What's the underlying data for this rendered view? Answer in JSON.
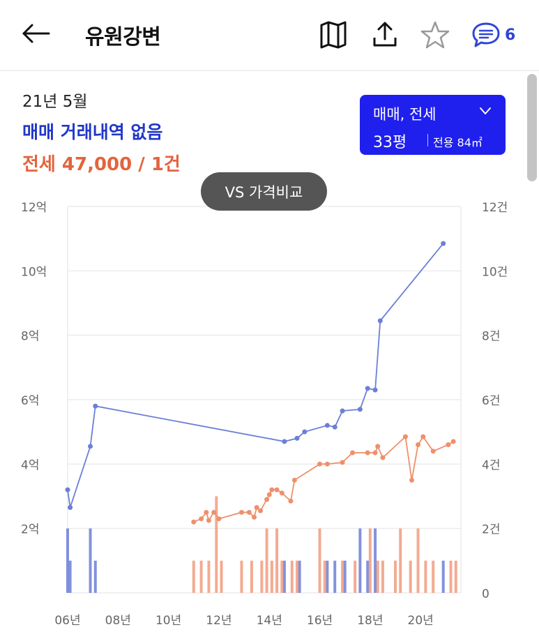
{
  "header": {
    "title": "유원강변",
    "chat_count": "6",
    "icons": [
      "back-arrow-icon",
      "map-icon",
      "share-icon",
      "star-icon",
      "chat-icon"
    ]
  },
  "summary": {
    "date": "21년 5월",
    "sale_text": "매매 거래내역 없음",
    "jeonse_text": "전세 47,000 / 1건"
  },
  "selector": {
    "type": "매매, 전세",
    "size": "33평",
    "area": "전용 84㎡"
  },
  "compare_button": "VS 가격비교",
  "colors": {
    "sale": "#6b7fd7",
    "jeonse": "#ef8f6c",
    "accent": "#1f1fee"
  },
  "chart_data": {
    "type": "line",
    "title": "",
    "x_ticks": [
      "06년",
      "08년",
      "10년",
      "12년",
      "14년",
      "16년",
      "18년",
      "20년"
    ],
    "xlim": [
      2006,
      2021.6
    ],
    "y_left": {
      "ticks": [
        "12억",
        "10억",
        "8억",
        "6억",
        "4억",
        "2억"
      ],
      "ylim": [
        0,
        12
      ]
    },
    "y_right": {
      "ticks": [
        "12건",
        "10건",
        "8건",
        "6건",
        "4건",
        "2건",
        "0"
      ],
      "ylim": [
        0,
        12
      ]
    },
    "grid": true,
    "series": [
      {
        "color": "#6b7fd7",
        "x": [
          2006.0,
          2006.1,
          2006.9,
          2007.1,
          2014.6,
          2015.1,
          2015.4,
          2016.3,
          2016.6,
          2016.9,
          2017.6,
          2017.9,
          2018.2,
          2018.4,
          2020.9
        ],
        "y": [
          3.2,
          2.65,
          4.55,
          5.8,
          4.7,
          4.8,
          5.0,
          5.2,
          5.15,
          5.65,
          5.7,
          6.35,
          6.3,
          8.45,
          10.85
        ]
      },
      {
        "color": "#ef8f6c",
        "x": [
          2011.0,
          2011.3,
          2011.5,
          2011.6,
          2011.8,
          2012.0,
          2012.9,
          2013.2,
          2013.4,
          2013.5,
          2013.65,
          2013.9,
          2014.0,
          2014.1,
          2014.3,
          2014.5,
          2014.85,
          2015.0,
          2016.0,
          2016.3,
          2016.9,
          2017.3,
          2017.9,
          2018.2,
          2018.3,
          2018.5,
          2019.4,
          2019.65,
          2019.9,
          2020.1,
          2020.5,
          2021.1,
          2021.3
        ],
        "y": [
          2.2,
          2.3,
          2.5,
          2.25,
          2.5,
          2.3,
          2.5,
          2.5,
          2.35,
          2.65,
          2.55,
          2.9,
          3.05,
          3.2,
          3.2,
          3.1,
          2.85,
          3.5,
          4.0,
          4.0,
          4.05,
          4.35,
          4.35,
          4.35,
          4.55,
          4.2,
          4.85,
          3.5,
          4.6,
          4.85,
          4.4,
          4.6,
          4.7
        ]
      }
    ],
    "volume_bars": [
      {
        "color": "#6b7fd7",
        "x": [
          2006.0,
          2006.1,
          2006.9,
          2007.1,
          2014.6,
          2015.2,
          2016.3,
          2016.6,
          2017.0,
          2017.6,
          2017.9,
          2018.2,
          2020.9
        ],
        "count": [
          2,
          1,
          2,
          1,
          1,
          1,
          1,
          1,
          1,
          2,
          1,
          2,
          1
        ]
      },
      {
        "color": "#ef8f6c",
        "x": [
          2011.0,
          2011.3,
          2011.6,
          2011.9,
          2012.1,
          2012.9,
          2013.3,
          2013.7,
          2013.9,
          2014.1,
          2014.3,
          2014.5,
          2014.9,
          2015.1,
          2016.0,
          2016.2,
          2016.9,
          2017.4,
          2018.0,
          2018.3,
          2018.5,
          2019.0,
          2019.2,
          2019.6,
          2019.9,
          2020.2,
          2020.5,
          2021.2,
          2021.4
        ],
        "count": [
          1,
          1,
          1,
          3,
          1,
          1,
          1,
          1,
          2,
          1,
          2,
          1,
          1,
          1,
          2,
          1,
          1,
          1,
          2,
          1,
          1,
          1,
          2,
          1,
          2,
          1,
          1,
          1,
          1
        ]
      }
    ]
  }
}
